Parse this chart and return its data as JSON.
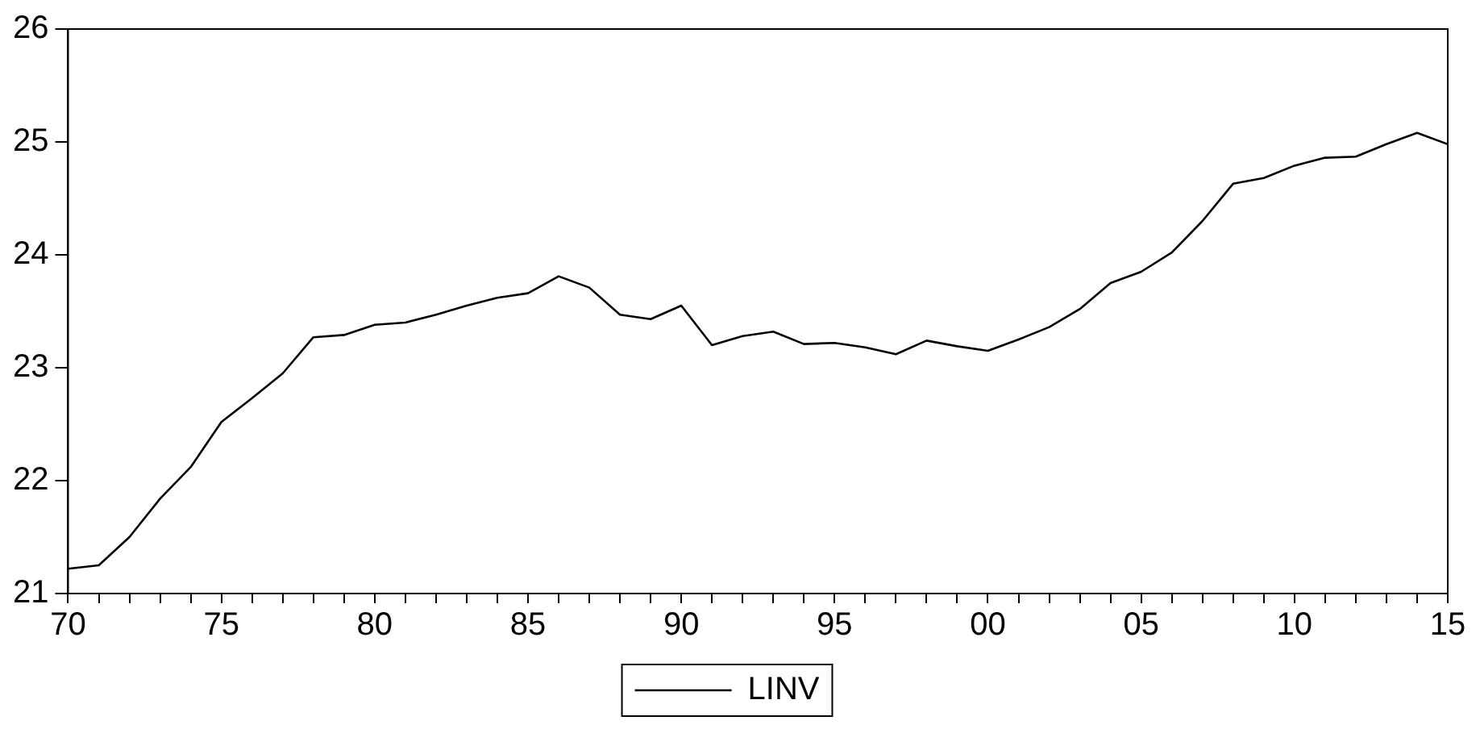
{
  "chart_data": {
    "type": "line",
    "legend": "bottom",
    "grid": false,
    "marker": "none",
    "line_style": "solid",
    "x": [
      1970,
      1971,
      1972,
      1973,
      1974,
      1975,
      1976,
      1977,
      1978,
      1979,
      1980,
      1981,
      1982,
      1983,
      1984,
      1985,
      1986,
      1987,
      1988,
      1989,
      1990,
      1991,
      1992,
      1993,
      1994,
      1995,
      1996,
      1997,
      1998,
      1999,
      2000,
      2001,
      2002,
      2003,
      2004,
      2005,
      2006,
      2007,
      2008,
      2009,
      2010,
      2011,
      2012,
      2013,
      2014,
      2015
    ],
    "series": [
      {
        "name": "LINV",
        "color": "#000000",
        "values": [
          21.22,
          21.25,
          21.5,
          21.84,
          22.12,
          22.52,
          22.73,
          22.95,
          23.27,
          23.29,
          23.38,
          23.4,
          23.47,
          23.55,
          23.62,
          23.66,
          23.81,
          23.71,
          23.47,
          23.43,
          23.55,
          23.2,
          23.28,
          23.32,
          23.21,
          23.22,
          23.18,
          23.12,
          23.24,
          23.19,
          23.15,
          23.25,
          23.36,
          23.52,
          23.75,
          23.85,
          24.02,
          24.3,
          24.63,
          24.68,
          24.79,
          24.86,
          24.87,
          24.98,
          25.08,
          24.98
        ]
      }
    ],
    "xlim": [
      1970,
      2015
    ],
    "xticks": [
      {
        "value": 1970,
        "label": "70"
      },
      {
        "value": 1971,
        "label": null
      },
      {
        "value": 1972,
        "label": null
      },
      {
        "value": 1973,
        "label": null
      },
      {
        "value": 1974,
        "label": null
      },
      {
        "value": 1975,
        "label": "75"
      },
      {
        "value": 1976,
        "label": null
      },
      {
        "value": 1977,
        "label": null
      },
      {
        "value": 1978,
        "label": null
      },
      {
        "value": 1979,
        "label": null
      },
      {
        "value": 1980,
        "label": "80"
      },
      {
        "value": 1981,
        "label": null
      },
      {
        "value": 1982,
        "label": null
      },
      {
        "value": 1983,
        "label": null
      },
      {
        "value": 1984,
        "label": null
      },
      {
        "value": 1985,
        "label": "85"
      },
      {
        "value": 1986,
        "label": null
      },
      {
        "value": 1987,
        "label": null
      },
      {
        "value": 1988,
        "label": null
      },
      {
        "value": 1989,
        "label": null
      },
      {
        "value": 1990,
        "label": "90"
      },
      {
        "value": 1991,
        "label": null
      },
      {
        "value": 1992,
        "label": null
      },
      {
        "value": 1993,
        "label": null
      },
      {
        "value": 1994,
        "label": null
      },
      {
        "value": 1995,
        "label": "95"
      },
      {
        "value": 1996,
        "label": null
      },
      {
        "value": 1997,
        "label": null
      },
      {
        "value": 1998,
        "label": null
      },
      {
        "value": 1999,
        "label": null
      },
      {
        "value": 2000,
        "label": "00"
      },
      {
        "value": 2001,
        "label": null
      },
      {
        "value": 2002,
        "label": null
      },
      {
        "value": 2003,
        "label": null
      },
      {
        "value": 2004,
        "label": null
      },
      {
        "value": 2005,
        "label": "05"
      },
      {
        "value": 2006,
        "label": null
      },
      {
        "value": 2007,
        "label": null
      },
      {
        "value": 2008,
        "label": null
      },
      {
        "value": 2009,
        "label": null
      },
      {
        "value": 2010,
        "label": "10"
      },
      {
        "value": 2011,
        "label": null
      },
      {
        "value": 2012,
        "label": null
      },
      {
        "value": 2013,
        "label": null
      },
      {
        "value": 2014,
        "label": null
      },
      {
        "value": 2015,
        "label": "15"
      }
    ],
    "ylim": [
      21,
      26
    ],
    "yticks": [
      21,
      22,
      23,
      24,
      25,
      26
    ]
  }
}
